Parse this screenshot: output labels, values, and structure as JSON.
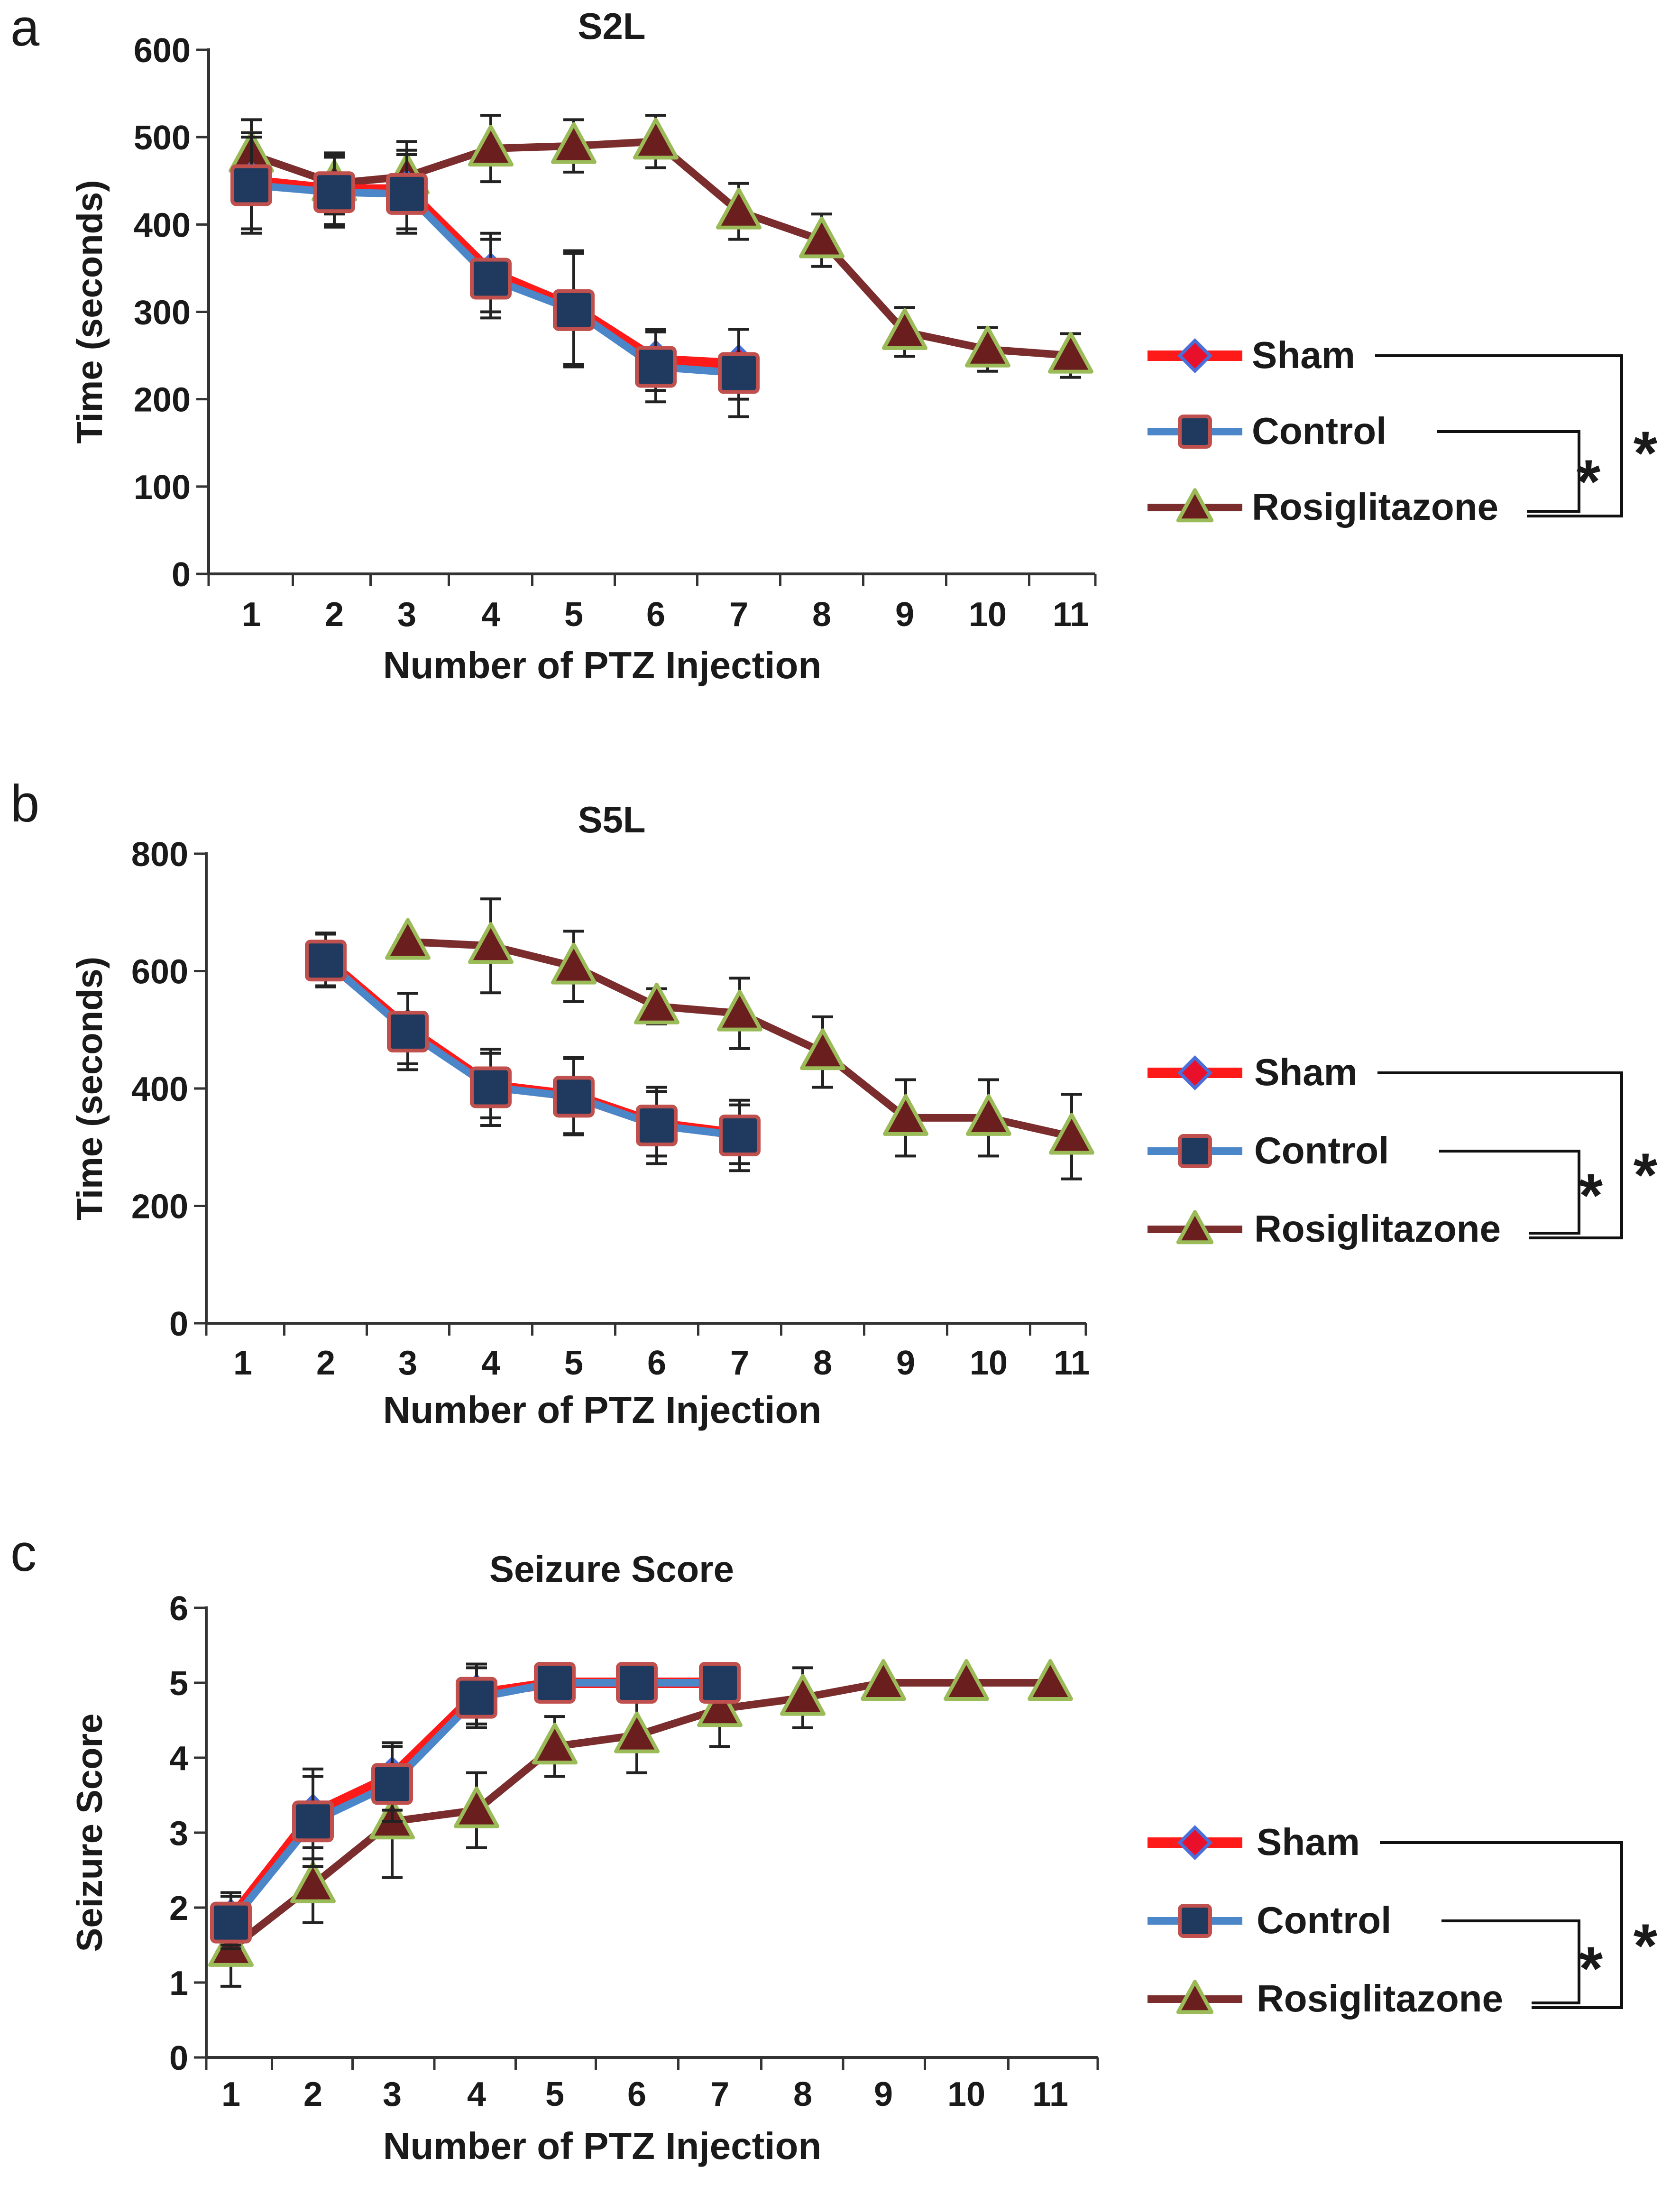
{
  "colors": {
    "sham_line": "#ff1a1a",
    "sham_marker_fill": "#e8102a",
    "sham_marker_edge": "#4a6fd8",
    "control_line": "#4a86c8",
    "control_marker_fill": "#1f3a5e",
    "control_marker_edge": "#c0504d",
    "rosi_line": "#7b2c2c",
    "rosi_marker_fill": "#6b1e1e",
    "rosi_marker_edge": "#9bbb59"
  },
  "chart_data": [
    {
      "panel_label": "a",
      "type": "line",
      "title": "S2L",
      "xlabel": "Number of PTZ Injection",
      "ylabel": "Time (seconds)",
      "categories": [
        "1",
        "2",
        "3",
        "4",
        "5",
        "6",
        "7",
        "8",
        "9",
        "10",
        "11"
      ],
      "ylim": [
        0,
        600
      ],
      "yticks": [
        "0",
        "100",
        "200",
        "300",
        "400",
        "500",
        "600"
      ],
      "series": [
        {
          "name": "Sham",
          "x": [
            1,
            2,
            3,
            4,
            5,
            6,
            7
          ],
          "values": [
            450,
            440,
            440,
            345,
            305,
            245,
            240
          ],
          "err": [
            55,
            40,
            45,
            45,
            65,
            35,
            40
          ]
        },
        {
          "name": "Control",
          "x": [
            1,
            2,
            3,
            4,
            5,
            6,
            7
          ],
          "values": [
            445,
            437,
            435,
            338,
            302,
            237,
            230
          ],
          "err": [
            55,
            40,
            45,
            45,
            65,
            40,
            50
          ]
        },
        {
          "name": "Rosiglitazone",
          "x": [
            1,
            2,
            3,
            4,
            5,
            6,
            7,
            8,
            9,
            10,
            11
          ],
          "values": [
            480,
            447,
            455,
            487,
            490,
            495,
            415,
            382,
            277,
            257,
            250
          ],
          "err": [
            40,
            35,
            40,
            38,
            30,
            30,
            32,
            30,
            28,
            25,
            25
          ]
        }
      ],
      "legend": [
        "Sham",
        "Control",
        "Rosiglitazone"
      ],
      "significance": [
        "*",
        "*"
      ]
    },
    {
      "panel_label": "b",
      "type": "line",
      "title": "S5L",
      "xlabel": "Number of PTZ Injection",
      "ylabel": "Time (seconds)",
      "categories": [
        "1",
        "2",
        "3",
        "4",
        "5",
        "6",
        "7",
        "8",
        "9",
        "10",
        "11"
      ],
      "ylim": [
        0,
        800
      ],
      "yticks": [
        "0",
        "200",
        "400",
        "600",
        "800"
      ],
      "series": [
        {
          "name": "Sham",
          "x": [
            2,
            3,
            4,
            5,
            6,
            7
          ],
          "values": [
            620,
            502,
            405,
            388,
            340,
            322
          ],
          "err": [
            45,
            60,
            55,
            65,
            55,
            50
          ]
        },
        {
          "name": "Control",
          "x": [
            2,
            3,
            4,
            5,
            6,
            7
          ],
          "values": [
            618,
            497,
            402,
            386,
            337,
            320
          ],
          "err": [
            45,
            65,
            65,
            65,
            65,
            60
          ]
        },
        {
          "name": "Rosiglitazone",
          "x": [
            3,
            4,
            5,
            6,
            7,
            8,
            9,
            10,
            11
          ],
          "values": [
            650,
            643,
            608,
            540,
            528,
            462,
            350,
            350,
            318
          ],
          "err": [
            10,
            80,
            60,
            30,
            60,
            60,
            65,
            65,
            72
          ]
        }
      ],
      "legend": [
        "Sham",
        "Control",
        "Rosiglitazone"
      ],
      "significance": [
        "*",
        "*"
      ]
    },
    {
      "panel_label": "c",
      "type": "line",
      "title": "Seizure Score",
      "xlabel": "Number of PTZ Injection",
      "ylabel": "Seizure Score",
      "categories": [
        "1",
        "2",
        "3",
        "4",
        "5",
        "6",
        "7",
        "8",
        "9",
        "10",
        "11"
      ],
      "ylim": [
        0,
        6
      ],
      "yticks": [
        "0",
        "1",
        "2",
        "3",
        "4",
        "5",
        "6"
      ],
      "series": [
        {
          "name": "Sham",
          "x": [
            1,
            2,
            3,
            4,
            5,
            6,
            7
          ],
          "values": [
            1.85,
            3.25,
            3.75,
            4.85,
            5,
            5,
            5
          ],
          "err": [
            0.35,
            0.6,
            0.45,
            0.4,
            0,
            0,
            0
          ]
        },
        {
          "name": "Control",
          "x": [
            1,
            2,
            3,
            4,
            5,
            6,
            7
          ],
          "values": [
            1.8,
            3.15,
            3.65,
            4.8,
            5,
            5,
            5
          ],
          "err": [
            0.35,
            0.6,
            0.5,
            0.4,
            0,
            0,
            0
          ]
        },
        {
          "name": "Rosiglitazone",
          "x": [
            1,
            2,
            3,
            4,
            5,
            6,
            7,
            8,
            9,
            10,
            11
          ],
          "values": [
            1.45,
            2.3,
            3.15,
            3.3,
            4.15,
            4.3,
            4.65,
            4.8,
            5,
            5,
            5
          ],
          "err": [
            0.5,
            0.5,
            0.75,
            0.5,
            0.4,
            0.5,
            0.5,
            0.4,
            0,
            0,
            0
          ]
        }
      ],
      "legend": [
        "Sham",
        "Control",
        "Rosiglitazone"
      ],
      "significance": [
        "*",
        "*"
      ]
    }
  ]
}
